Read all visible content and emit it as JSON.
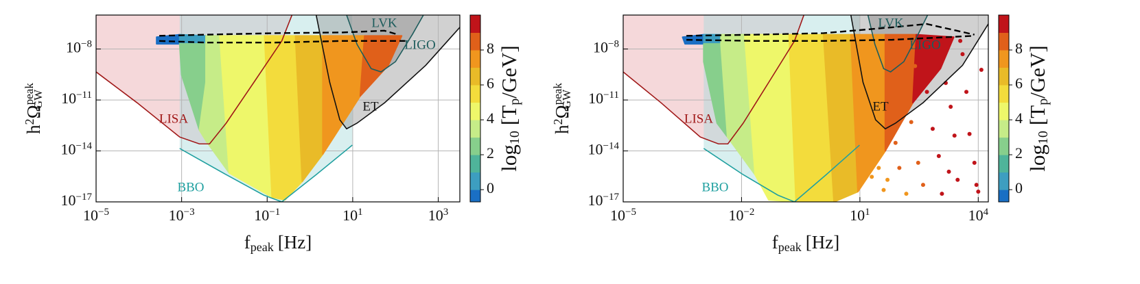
{
  "chart_data": [
    {
      "type": "scatter",
      "xscale": "log",
      "yscale": "log",
      "grid": true,
      "xlabel": {
        "text": "f",
        "sub": "peak",
        "unit": "[Hz]"
      },
      "ylabel": {
        "text": "h",
        "sup1": "2",
        "sym": "Ω",
        "sup": "peak",
        "sub": "GW"
      },
      "xlim": [
        1e-05,
        3200
      ],
      "ylim": [
        1e-17,
        1e-06
      ],
      "xticks": [
        {
          "value": 1e-05,
          "label": "10",
          "exp": "−5"
        },
        {
          "value": 0.001,
          "label": "10",
          "exp": "−3"
        },
        {
          "value": 0.1,
          "label": "10",
          "exp": "−1"
        },
        {
          "value": 10,
          "label": "10",
          "exp": "1"
        },
        {
          "value": 1000,
          "label": "10",
          "exp": "3"
        }
      ],
      "yticks": [
        {
          "value": 1e-08,
          "label": "10",
          "exp": "−8"
        },
        {
          "value": 1e-11,
          "label": "10",
          "exp": "−11"
        },
        {
          "value": 1e-14,
          "label": "10",
          "exp": "−14"
        },
        {
          "value": 1e-17,
          "label": "10",
          "exp": "−17"
        }
      ],
      "curves": [
        {
          "name": "LISA",
          "color": "#a01818",
          "fill": "#e8a8ae",
          "x": [
            1e-05,
            9e-05,
            0.0009,
            0.0026,
            0.0045,
            0.011,
            0.049,
            0.22,
            0.38
          ],
          "y": [
            4.5e-10,
            7e-12,
            6.6e-14,
            2.6e-14,
            2.6e-14,
            4.3e-13,
            1.1e-10,
            3e-08,
            1e-06
          ]
        },
        {
          "name": "BBO",
          "color": "#20a0a0",
          "fill": "#a8dcdc",
          "x": [
            0.0009,
            0.011,
            0.083,
            0.22,
            1.4,
            9.8
          ],
          "y": [
            1.4e-14,
            4e-16,
            2.5e-17,
            1e-17,
            4e-16,
            2.2e-14
          ]
        },
        {
          "name": "ET",
          "color": "#111111",
          "fill": "#9a9a9a",
          "x": [
            1.4,
            2.9,
            5,
            7.2,
            12.6,
            56,
            510,
            3200
          ],
          "y": [
            1e-06,
            1.1e-10,
            6.8e-13,
            2e-13,
            4.3e-13,
            6.9e-12,
            1.1e-09,
            1.9e-07
          ]
        },
        {
          "name": "LVK",
          "color": "#1d5c5c",
          "fill": "#8a8a8a",
          "x": [
            7.2,
            12.6,
            27,
            46,
            100,
            250,
            450
          ],
          "y": [
            1e-06,
            1.9e-08,
            7e-10,
            4.5e-10,
            1.8e-09,
            7.4e-08,
            1e-06
          ]
        }
      ],
      "annotations": [
        {
          "text": "LIGO",
          "color": "#1d5c5c"
        }
      ],
      "bands": [
        {
          "c": -0.5,
          "x": [
            0.00026,
            0.0009,
            0.0009,
            0.00026
          ],
          "y": [
            5e-08,
            7e-08,
            2e-08,
            2e-08
          ]
        },
        {
          "c": 0.5,
          "x": [
            0.0009,
            0.0037,
            0.0037,
            0.0009
          ],
          "y": [
            7e-08,
            6e-08,
            2e-08,
            2e-08
          ]
        },
        {
          "c": 2.5,
          "x": [
            0.0009,
            0.0037,
            0.0037,
            0.0026,
            0.001
          ],
          "y": [
            2e-08,
            2e-08,
            1.1e-10,
            1.7e-13,
            3e-10
          ]
        },
        {
          "c": 3.5,
          "x": [
            0.0037,
            0.0078,
            0.013,
            0.0037,
            0.0026,
            0.0037
          ],
          "y": [
            6e-08,
            6e-08,
            5e-16,
            4e-14,
            1.7e-13,
            1.1e-10
          ]
        },
        {
          "c": 4.5,
          "x": [
            0.0078,
            0.087,
            0.13,
            0.013
          ],
          "y": [
            6e-08,
            6e-08,
            1.9e-17,
            5e-16
          ]
        },
        {
          "c": 5.5,
          "x": [
            0.087,
            0.46,
            0.66,
            0.26,
            0.13
          ],
          "y": [
            6e-08,
            6e-08,
            1.6e-16,
            1.3e-17,
            1.9e-17
          ]
        },
        {
          "c": 6.5,
          "x": [
            0.46,
            2,
            2,
            0.66
          ],
          "y": [
            6e-08,
            6e-08,
            6.5e-15,
            1.6e-16
          ]
        },
        {
          "c": 7.5,
          "x": [
            2,
            19,
            15,
            2
          ],
          "y": [
            6e-08,
            6e-08,
            1.7e-11,
            6.5e-15
          ]
        },
        {
          "c": 8.5,
          "x": [
            19,
            140,
            68,
            15
          ],
          "y": [
            6e-08,
            6e-08,
            1.1e-09,
            1.7e-11
          ]
        }
      ],
      "contours": [
        {
          "x": [
            0.0003,
            0.0037,
            0.15,
            6,
            55,
            117
          ],
          "y": [
            6e-08,
            7e-08,
            8.6e-08,
            9.5e-08,
            1.2e-07,
            7e-08
          ]
        },
        {
          "x": [
            0.0003,
            0.0037,
            0.15,
            6,
            170
          ],
          "y": [
            3e-08,
            2.4e-08,
            2.4e-08,
            3e-08,
            3e-08
          ]
        }
      ],
      "colorbar": {
        "label": {
          "text": "log",
          "sub": "10",
          "rest": "[T",
          "rsub": "p",
          "end": "/GeV]"
        },
        "bins": [
          -0.7,
          0,
          1,
          2,
          3,
          4,
          5,
          6,
          7,
          8,
          9,
          10
        ],
        "colors": [
          "#1a6fc4",
          "#3d9ec0",
          "#4fb49a",
          "#87cf8c",
          "#c6ec88",
          "#eef76a",
          "#f3dc3c",
          "#e9bb28",
          "#f0961e",
          "#e0601a",
          "#c0141a"
        ],
        "ticks": [
          0,
          2,
          4,
          6,
          8
        ]
      }
    },
    {
      "type": "scatter",
      "xscale": "log",
      "yscale": "log",
      "grid": true,
      "xlabel": {
        "text": "f",
        "sub": "peak",
        "unit": "[Hz]"
      },
      "ylabel": {
        "text": "h",
        "sup1": "2",
        "sym": "Ω",
        "sup": "peak",
        "sub": "GW"
      },
      "xlim": [
        1e-05,
        18000
      ],
      "ylim": [
        1e-17,
        1e-06
      ],
      "xticks": [
        {
          "value": 1e-05,
          "label": "10",
          "exp": "−5"
        },
        {
          "value": 0.01,
          "label": "10",
          "exp": "−2"
        },
        {
          "value": 10,
          "label": "10",
          "exp": "1"
        },
        {
          "value": 10000,
          "label": "10",
          "exp": "4"
        }
      ],
      "yticks": [
        {
          "value": 1e-08,
          "label": "10",
          "exp": "−8"
        },
        {
          "value": 1e-11,
          "label": "10",
          "exp": "−11"
        },
        {
          "value": 1e-14,
          "label": "10",
          "exp": "−14"
        },
        {
          "value": 1e-17,
          "label": "10",
          "exp": "−17"
        }
      ],
      "curves": [
        {
          "name": "LISA",
          "color": "#a01818",
          "fill": "#e8a8ae",
          "x": [
            1e-05,
            9e-05,
            0.0009,
            0.0026,
            0.0045,
            0.011,
            0.049,
            0.22,
            0.38
          ],
          "y": [
            4.5e-10,
            7e-12,
            6.6e-14,
            2.6e-14,
            2.6e-14,
            4.3e-13,
            1.1e-10,
            3e-08,
            1e-06
          ]
        },
        {
          "name": "BBO",
          "color": "#20a0a0",
          "fill": "#a8dcdc",
          "x": [
            0.0011,
            0.011,
            0.083,
            0.22,
            1.4,
            9.8
          ],
          "y": [
            1.4e-14,
            4e-16,
            2.5e-17,
            1e-17,
            4e-16,
            2.2e-14
          ]
        },
        {
          "name": "ET",
          "color": "#111111",
          "fill": "#9a9a9a",
          "x": [
            5.9,
            12,
            25,
            44,
            80,
            400,
            4000,
            18000
          ],
          "y": [
            1e-06,
            1.1e-10,
            6.8e-13,
            2e-13,
            4.3e-13,
            6.9e-12,
            1.1e-09,
            3e-07
          ]
        },
        {
          "name": "LVK",
          "color": "#1d5c5c",
          "fill": "#8a8a8a",
          "x": [
            16,
            24,
            40,
            60,
            130,
            300,
            520
          ],
          "y": [
            1e-06,
            1.9e-08,
            7e-10,
            4.5e-10,
            1.8e-09,
            7.4e-08,
            1e-06
          ]
        }
      ],
      "annotations": [
        {
          "text": "LIGO",
          "color": "#1d5c5c"
        }
      ],
      "bands": [
        {
          "c": -0.5,
          "x": [
            0.00032,
            0.0011,
            0.0011,
            0.00037
          ],
          "y": [
            5e-08,
            7e-08,
            2e-08,
            2e-08
          ]
        },
        {
          "c": 0.5,
          "x": [
            0.0011,
            0.003,
            0.003,
            0.0011
          ],
          "y": [
            7e-08,
            7e-08,
            2e-08,
            2e-08
          ]
        },
        {
          "c": 2.5,
          "x": [
            0.0011,
            0.003,
            0.0044,
            0.0024,
            0.0011
          ],
          "y": [
            2e-08,
            2e-08,
            6.6e-14,
            4.3e-13,
            1.8e-09
          ]
        },
        {
          "c": 3.5,
          "x": [
            0.003,
            0.012,
            0.022,
            0.0044,
            0.003
          ],
          "y": [
            7e-08,
            7e-08,
            4e-16,
            6.6e-14,
            2e-08
          ]
        },
        {
          "c": 4.5,
          "x": [
            0.012,
            0.16,
            0.24,
            0.049,
            0.022
          ],
          "y": [
            7e-08,
            7e-08,
            1e-17,
            1.3e-17,
            4e-16
          ]
        },
        {
          "c": 5.5,
          "x": [
            0.16,
            1.2,
            2.2,
            0.24
          ],
          "y": [
            7e-08,
            7e-08,
            1e-17,
            1e-17
          ]
        },
        {
          "c": 6.5,
          "x": [
            1.2,
            5.9,
            8.9,
            2.2
          ],
          "y": [
            7e-08,
            7e-08,
            4e-17,
            1e-17
          ]
        },
        {
          "c": 7.5,
          "x": [
            5.9,
            44,
            44,
            8.9
          ],
          "y": [
            7e-08,
            7e-08,
            1e-14,
            4e-17
          ]
        },
        {
          "c": 8.5,
          "x": [
            44,
            270,
            220,
            44
          ],
          "y": [
            7e-08,
            7e-08,
            6.9e-12,
            1e-14
          ]
        },
        {
          "c": 9.5,
          "x": [
            270,
            2400,
            1100,
            220
          ],
          "y": [
            7e-08,
            5e-08,
            7e-10,
            6.9e-12
          ]
        }
      ],
      "points": {
        "x": [
          20,
          30,
          50,
          40,
          80,
          100,
          150,
          200,
          300,
          400,
          500,
          700,
          1000,
          1200,
          1500,
          2000,
          2500,
          3000,
          4000,
          5000,
          6000,
          8000,
          10000,
          12000,
          600,
          3500,
          250,
          150,
          9000,
          1800
        ],
        "y": [
          3e-16,
          1e-15,
          2e-16,
          5e-17,
          3e-14,
          1e-15,
          3e-17,
          5e-13,
          2e-15,
          1e-16,
          3e-11,
          2e-13,
          5e-15,
          3e-17,
          1e-10,
          4e-12,
          8e-14,
          2e-16,
          5e-09,
          3e-11,
          1e-13,
          2e-15,
          4e-17,
          6e-10,
          2e-09,
          3e-08,
          1e-09,
          8e-12,
          1e-16,
          6e-16
        ],
        "c": [
          7.5,
          7.8,
          7.6,
          7.4,
          8.2,
          8.1,
          7.9,
          8.6,
          8.4,
          8.3,
          9.0,
          9.1,
          9.2,
          9.0,
          9.3,
          9.4,
          9.5,
          9.3,
          9.5,
          9.6,
          9.6,
          9.7,
          9.7,
          9.8,
          9.0,
          9.4,
          8.8,
          8.5,
          9.7,
          9.4
        ]
      },
      "contours": [
        {
          "x": [
            0.0004,
            0.022,
            1.2,
            66,
            490,
            8000
          ],
          "y": [
            6e-08,
            7e-08,
            8.6e-08,
            1.9e-07,
            3e-07,
            7e-08
          ]
        },
        {
          "x": [
            0.0004,
            0.022,
            1.2,
            66,
            8000
          ],
          "y": [
            3.5e-08,
            3e-08,
            3e-08,
            3.5e-08,
            6e-08
          ]
        }
      ],
      "colorbar": {
        "label": {
          "text": "log",
          "sub": "10",
          "rest": "[T",
          "rsub": "p",
          "end": "/GeV]"
        },
        "bins": [
          -0.7,
          0,
          1,
          2,
          3,
          4,
          5,
          6,
          7,
          8,
          9,
          10
        ],
        "colors": [
          "#1a6fc4",
          "#3d9ec0",
          "#4fb49a",
          "#87cf8c",
          "#c6ec88",
          "#eef76a",
          "#f3dc3c",
          "#e9bb28",
          "#f0961e",
          "#e0601a",
          "#c0141a"
        ],
        "ticks": [
          0,
          2,
          4,
          6,
          8
        ]
      }
    }
  ]
}
